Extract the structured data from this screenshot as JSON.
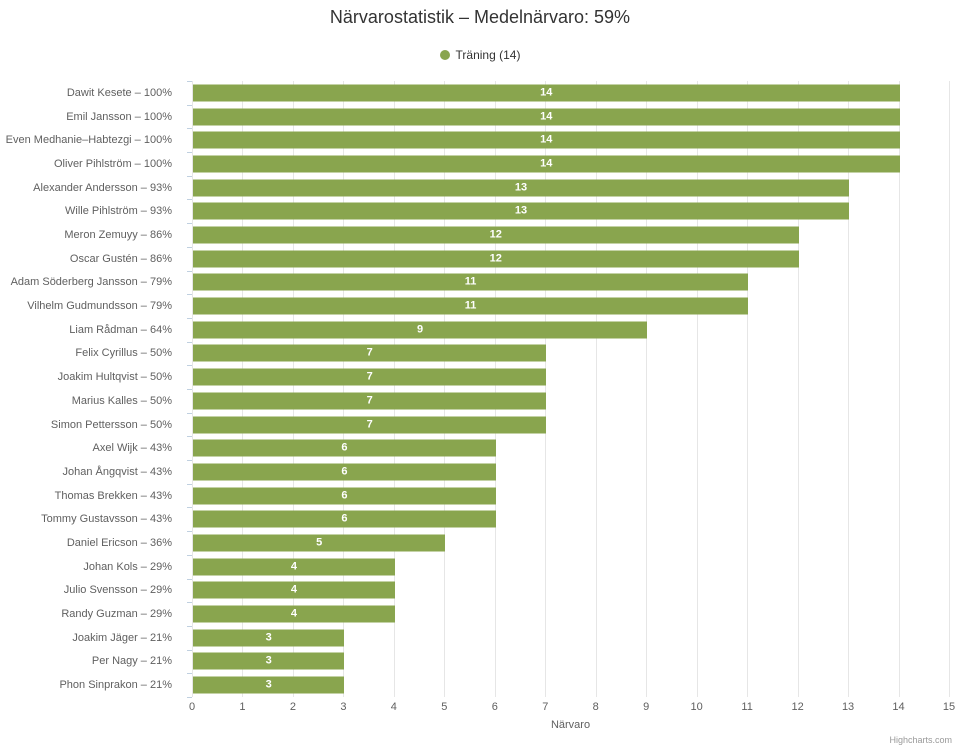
{
  "title": "Närvarostatistik – Medelnärvaro: 59%",
  "legend": {
    "items": [
      {
        "label": "Träning (14)",
        "color": "#89A54E"
      }
    ]
  },
  "chart_data": {
    "type": "bar",
    "orientation": "horizontal",
    "title": "Närvarostatistik – Medelnärvaro: 59%",
    "series_name": "Träning (14)",
    "categories": [
      "Dawit Kesete – 100%",
      "Emil Jansson – 100%",
      "Even Medhanie–Habtezgi – 100%",
      "Oliver Pihlström – 100%",
      "Alexander Andersson – 93%",
      "Wille Pihlström – 93%",
      "Meron Zemuyy – 86%",
      "Oscar Gustén – 86%",
      "Adam Söderberg Jansson – 79%",
      "Vilhelm Gudmundsson – 79%",
      "Liam Rådman – 64%",
      "Felix Cyrillus – 50%",
      "Joakim Hultqvist – 50%",
      "Marius Kalles – 50%",
      "Simon Pettersson – 50%",
      "Axel Wijk – 43%",
      "Johan Ångqvist – 43%",
      "Thomas Brekken – 43%",
      "Tommy Gustavsson – 43%",
      "Daniel Ericson – 36%",
      "Johan Kols – 29%",
      "Julio Svensson – 29%",
      "Randy Guzman – 29%",
      "Joakim Jäger – 21%",
      "Per Nagy – 21%",
      "Phon Sinprakon – 21%"
    ],
    "values": [
      14,
      14,
      14,
      14,
      13,
      13,
      12,
      12,
      11,
      11,
      9,
      7,
      7,
      7,
      7,
      6,
      6,
      6,
      6,
      5,
      4,
      4,
      4,
      3,
      3,
      3
    ],
    "xlabel": "Närvaro",
    "value_axis": {
      "min": 0,
      "max": 15,
      "tick_interval": 1
    },
    "grid": true,
    "legend_position": "top",
    "bar_color": "#89A54E",
    "data_label_color": "#FFFFFF"
  },
  "colors": {
    "bar": "#89A54E",
    "grid": "#E6E6E6",
    "axis": "#C0D0E0",
    "label": "#606060",
    "title": "#333333"
  },
  "credit": "Highcharts.com"
}
